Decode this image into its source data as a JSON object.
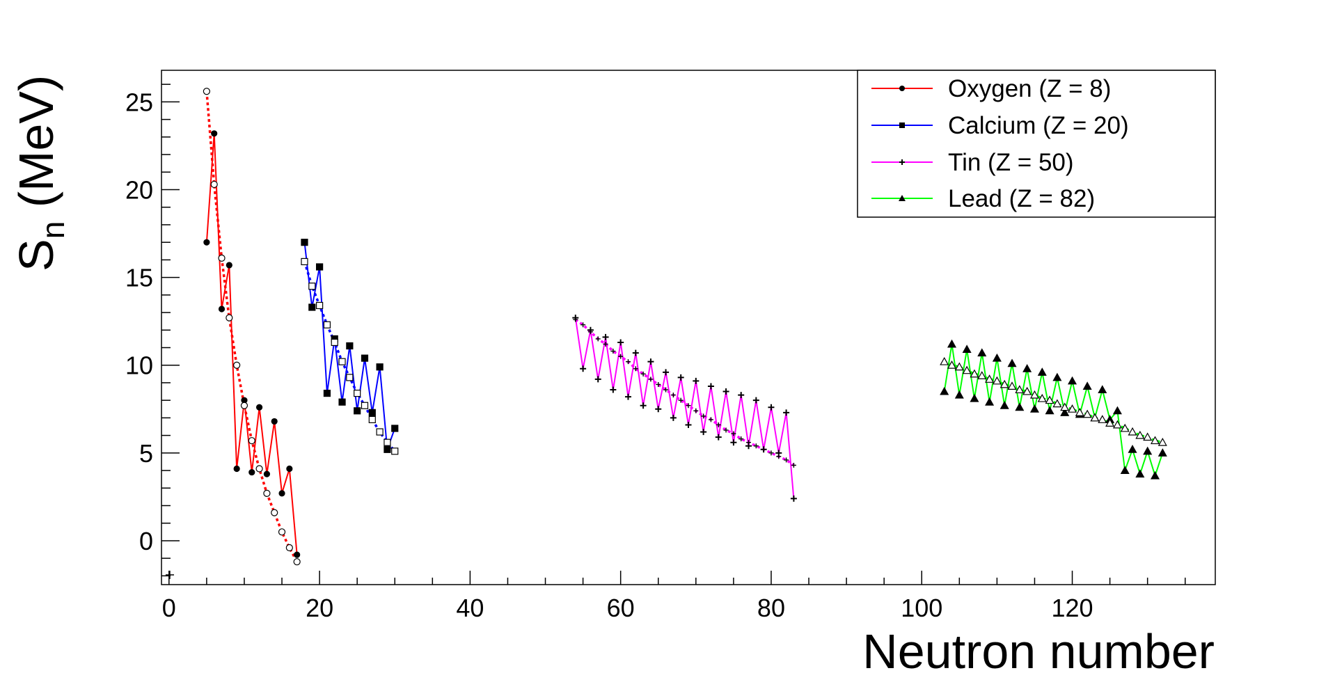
{
  "chart_data": {
    "type": "line",
    "title": "",
    "xlabel": "Neutron number",
    "ylabel": {
      "main": "S",
      "subscript": "n",
      "unit": " (MeV)"
    },
    "xlim": [
      -1,
      139
    ],
    "ylim": [
      -2.5,
      26.8
    ],
    "x_ticks": [
      0,
      20,
      40,
      60,
      80,
      100,
      120
    ],
    "y_ticks": [
      0,
      5,
      10,
      15,
      20,
      25
    ],
    "grid": false,
    "legend_position": "top-right",
    "series": [
      {
        "name": "Oxygen (Z = 8)",
        "color": "#ff0000",
        "marker": "circle",
        "x": [
          5,
          6,
          7,
          8,
          9,
          10,
          11,
          12,
          13,
          14,
          15,
          16,
          17
        ],
        "values": [
          17.0,
          23.2,
          13.2,
          15.7,
          4.1,
          8.0,
          3.9,
          7.6,
          3.8,
          6.8,
          2.7,
          4.1,
          -0.8
        ],
        "fit_values": [
          25.6,
          20.3,
          16.1,
          12.7,
          10.0,
          7.7,
          5.7,
          4.1,
          2.7,
          1.6,
          0.5,
          -0.4,
          -1.2
        ]
      },
      {
        "name": "Calcium (Z = 20)",
        "color": "#0000ff",
        "marker": "square",
        "x": [
          18,
          19,
          20,
          21,
          22,
          23,
          24,
          25,
          26,
          27,
          28,
          29,
          30
        ],
        "values": [
          17.0,
          13.3,
          15.6,
          8.4,
          11.5,
          7.9,
          11.1,
          7.4,
          10.4,
          7.3,
          9.9,
          5.2,
          6.4
        ],
        "fit_values": [
          15.9,
          14.5,
          13.4,
          12.3,
          11.3,
          10.2,
          9.3,
          8.4,
          7.7,
          6.9,
          6.2,
          5.6,
          5.1
        ]
      },
      {
        "name": "Tin (Z = 50)",
        "color": "#ff00ff",
        "marker": "cross",
        "x": [
          54,
          55,
          56,
          57,
          58,
          59,
          60,
          61,
          62,
          63,
          64,
          65,
          66,
          67,
          68,
          69,
          70,
          71,
          72,
          73,
          74,
          75,
          76,
          77,
          78,
          79,
          80,
          81,
          82,
          83
        ],
        "values": [
          12.7,
          9.8,
          12.0,
          9.2,
          11.6,
          8.6,
          11.3,
          8.2,
          10.7,
          7.7,
          10.2,
          7.5,
          9.6,
          7.0,
          9.3,
          6.6,
          9.1,
          6.2,
          8.8,
          5.9,
          8.5,
          5.6,
          8.3,
          5.4,
          8.0,
          5.2,
          7.6,
          5.0,
          7.3,
          2.4
        ],
        "fit_values": [
          12.6,
          12.3,
          11.9,
          11.5,
          11.2,
          10.8,
          10.5,
          10.2,
          9.8,
          9.5,
          9.2,
          8.9,
          8.6,
          8.3,
          8.0,
          7.7,
          7.4,
          7.1,
          6.9,
          6.6,
          6.3,
          6.1,
          5.8,
          5.6,
          5.4,
          5.2,
          5.0,
          4.8,
          4.6,
          4.3
        ]
      },
      {
        "name": "Lead (Z = 82)",
        "color": "#00ff00",
        "marker": "triangle",
        "x": [
          103,
          104,
          105,
          106,
          107,
          108,
          109,
          110,
          111,
          112,
          113,
          114,
          115,
          116,
          117,
          118,
          119,
          120,
          121,
          122,
          123,
          124,
          125,
          126,
          127,
          128,
          129,
          130,
          131,
          132
        ],
        "values": [
          8.5,
          11.2,
          8.3,
          10.9,
          8.1,
          10.7,
          7.9,
          10.4,
          7.7,
          10.1,
          7.6,
          9.8,
          7.5,
          9.6,
          7.4,
          9.3,
          7.3,
          9.1,
          7.2,
          8.8,
          7.0,
          8.6,
          6.9,
          7.4,
          4.0,
          5.2,
          3.8,
          5.1,
          3.7,
          5.0
        ],
        "fit_values": [
          10.2,
          10.0,
          9.9,
          9.7,
          9.5,
          9.4,
          9.2,
          9.1,
          8.9,
          8.8,
          8.6,
          8.5,
          8.3,
          8.1,
          8.0,
          7.8,
          7.6,
          7.5,
          7.3,
          7.2,
          7.0,
          6.9,
          6.7,
          6.6,
          6.4,
          6.2,
          6.0,
          5.9,
          5.7,
          5.6
        ]
      }
    ]
  }
}
